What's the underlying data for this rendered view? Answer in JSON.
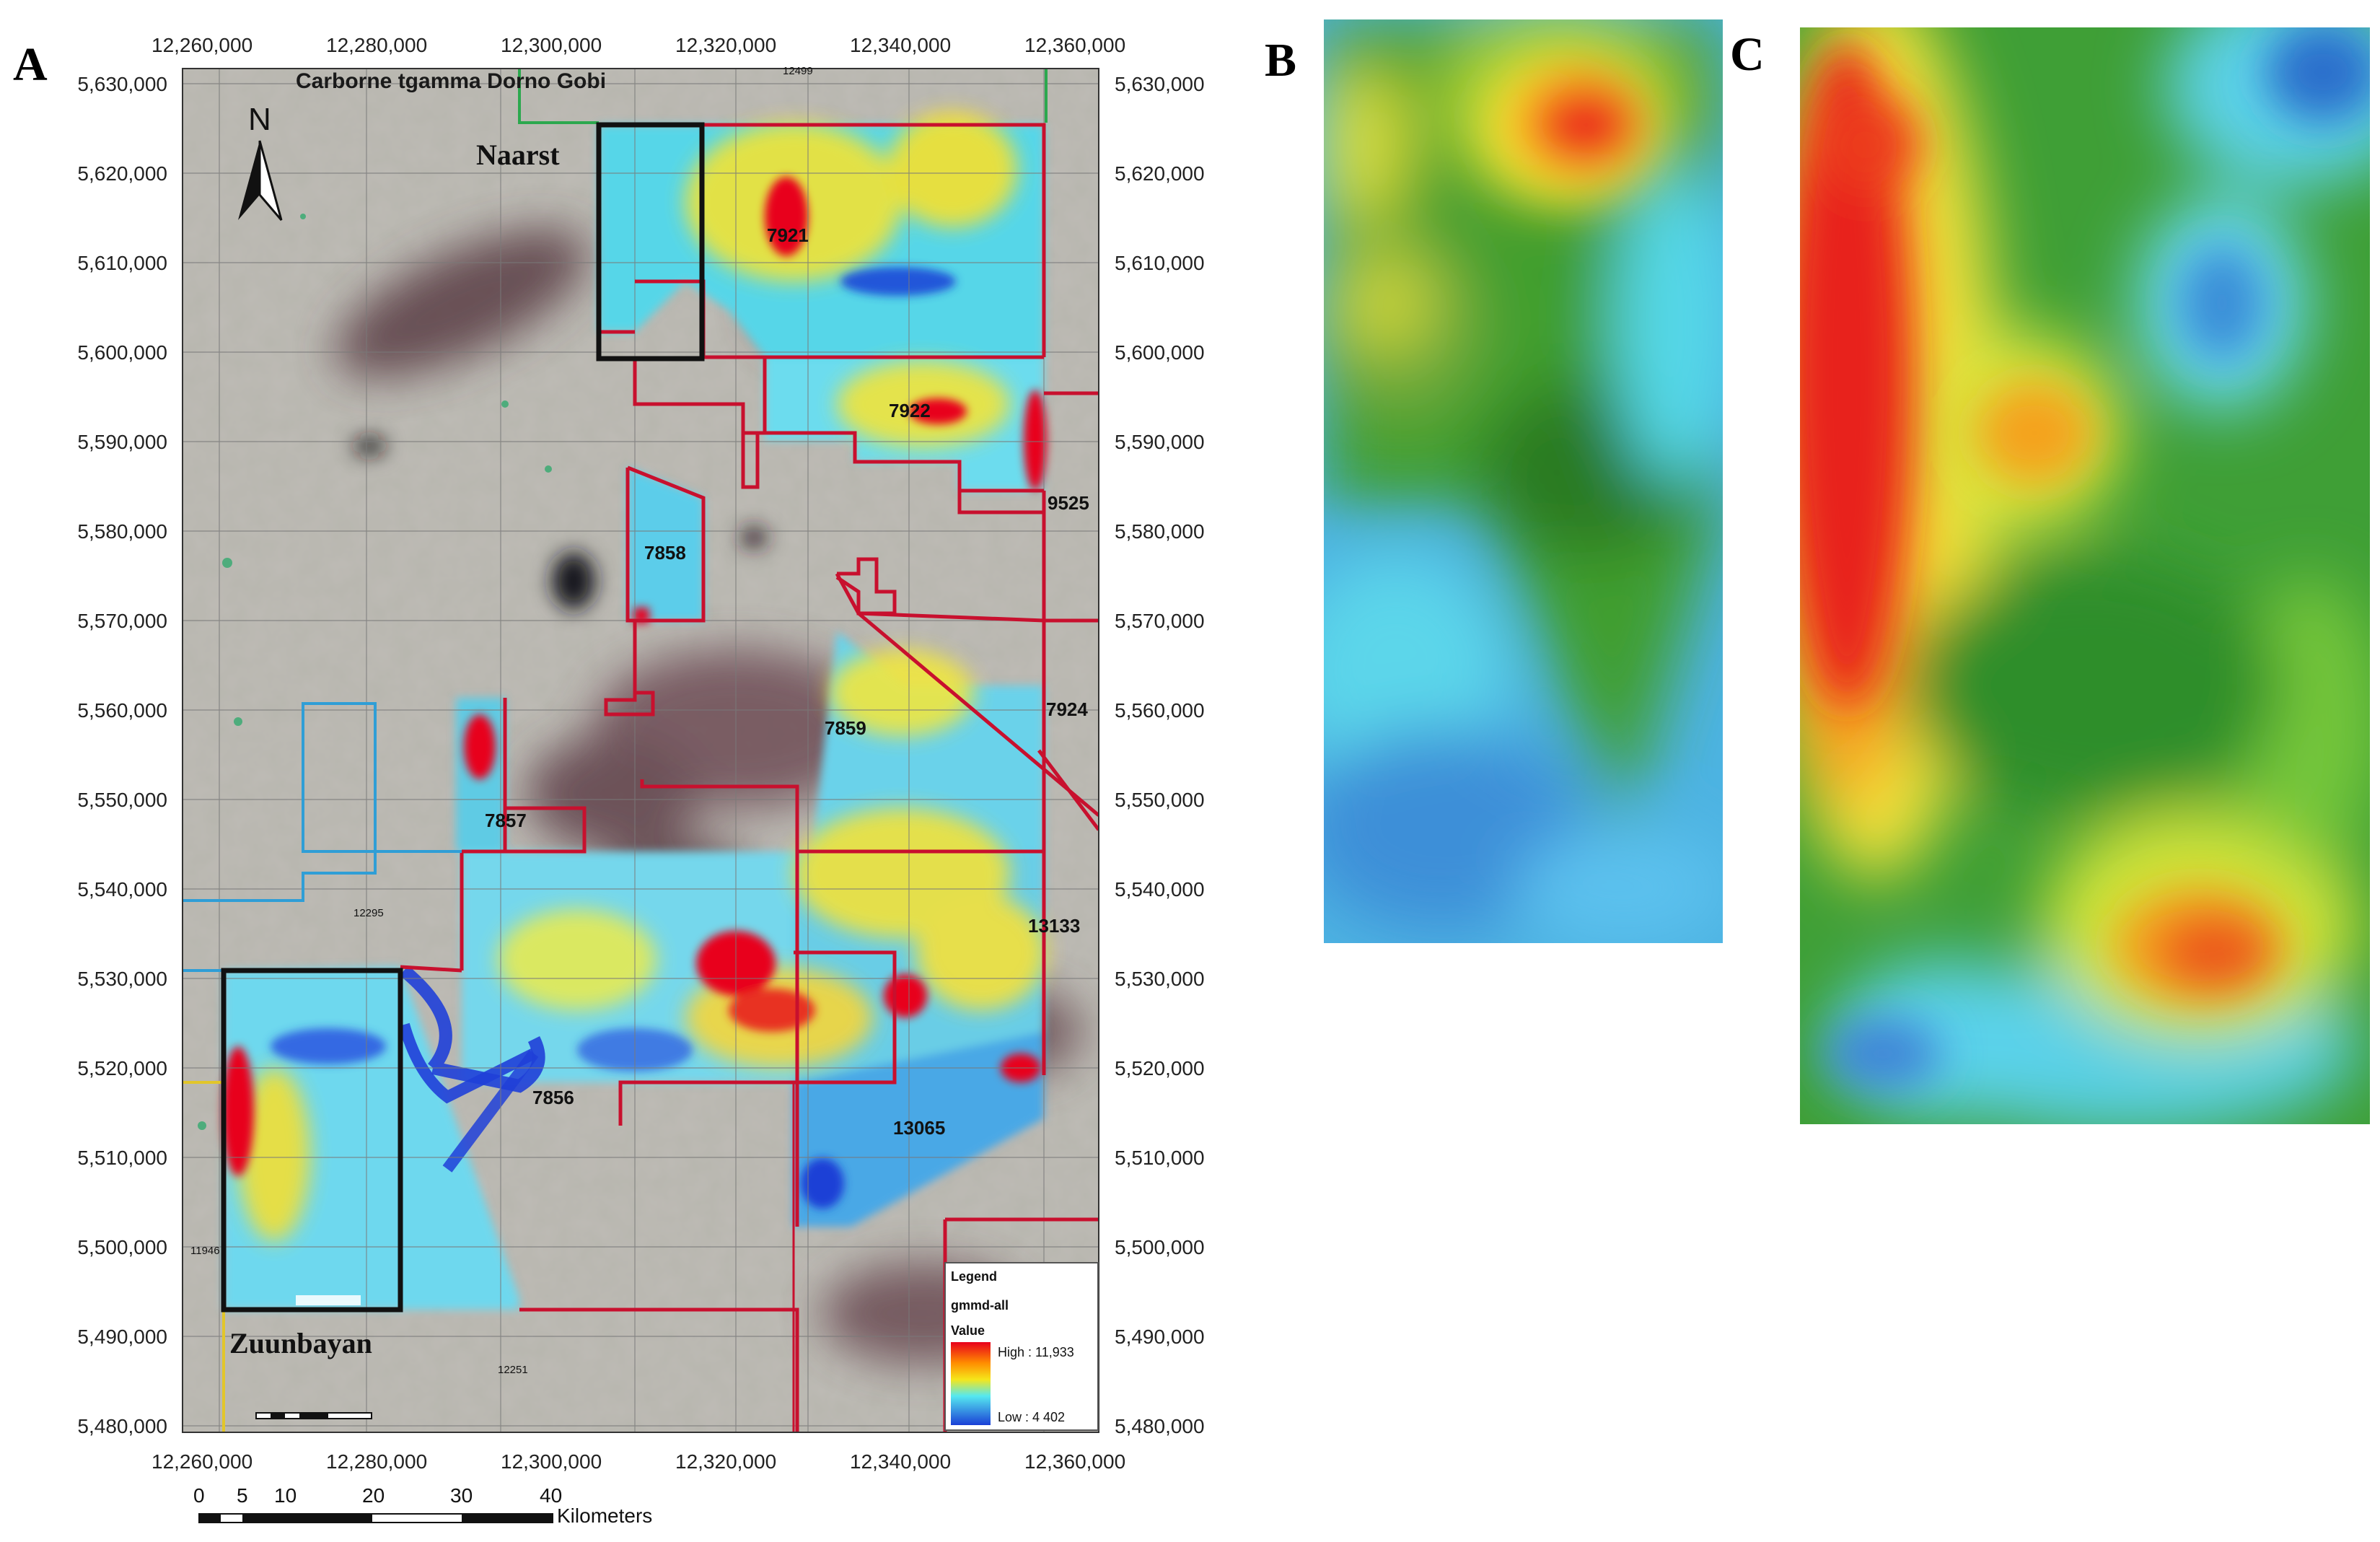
{
  "panels": {
    "a": "A",
    "b": "B",
    "c": "C"
  },
  "map": {
    "title": "Carborne tgamma Dorno Gobi",
    "x_ticks_top": [
      "12,260,000",
      "12,280,000",
      "12,300,000",
      "12,320,000",
      "12,340,000",
      "12,360,000"
    ],
    "x_ticks_bottom": [
      "12,260,000",
      "12,280,000",
      "12,300,000",
      "12,320,000",
      "12,340,000",
      "12,360,000"
    ],
    "y_ticks_left": [
      "5,630,000",
      "5,620,000",
      "5,610,000",
      "5,600,000",
      "5,590,000",
      "5,580,000",
      "5,570,000",
      "5,560,000",
      "5,550,000",
      "5,540,000",
      "5,530,000",
      "5,520,000",
      "5,510,000",
      "5,500,000",
      "5,490,000",
      "5,480,000"
    ],
    "y_ticks_right": [
      "5,630,000",
      "5,620,000",
      "5,610,000",
      "5,600,000",
      "5,590,000",
      "5,580,000",
      "5,570,000",
      "5,560,000",
      "5,550,000",
      "5,540,000",
      "5,530,000",
      "5,520,000",
      "5,510,000",
      "5,500,000",
      "5,490,000",
      "5,480,000"
    ],
    "north": "N",
    "places": {
      "naarst": "Naarst",
      "zuunbayan": "Zuunbayan"
    },
    "block_labels": {
      "b7921": "7921",
      "b7922": "7922",
      "b9525": "9525",
      "b7858": "7858",
      "b7924": "7924",
      "b7859": "7859",
      "b7857": "7857",
      "b13133": "13133",
      "b7856": "7856",
      "b13065": "13065"
    },
    "small_labels": {
      "s12499": "12499",
      "s12295": "12295",
      "s11946": "11946",
      "s12251": "12251"
    },
    "legend": {
      "title": "Legend",
      "layer": "gmmd-all",
      "value": "Value",
      "high": "High : 11,933",
      "low": "Low : 4 402"
    },
    "scalebar": {
      "ticks": [
        "0",
        "5",
        "10",
        "20",
        "30",
        "40"
      ],
      "unit": "Kilometers"
    },
    "colors": {
      "high": "#e8001c",
      "mid_high": "#f5e61a",
      "mid": "#55e8f0",
      "low": "#1a3fd6",
      "boundary": "#c8102e",
      "blue_boundary": "#2f9ed6",
      "study_box": "#111111"
    }
  }
}
